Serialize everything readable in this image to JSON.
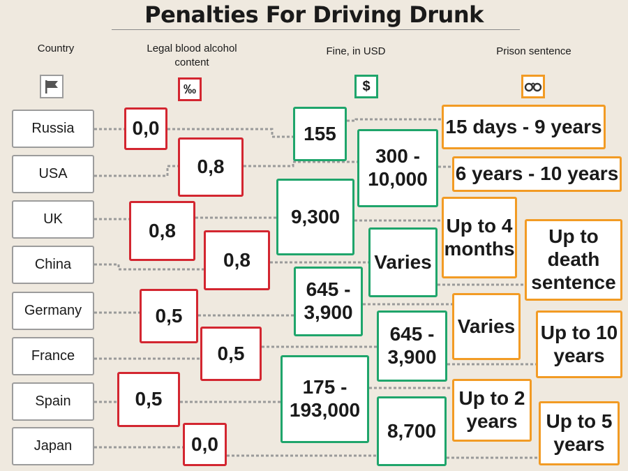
{
  "title": "Penalties For Driving Drunk",
  "headers": {
    "country": "Country",
    "bac": "Legal blood alcohol content",
    "fine": "Fine, in USD",
    "prison": "Prison sentence"
  },
  "icons": {
    "country": "flag-icon",
    "bac": "permille-icon",
    "bac_symbol": "‰",
    "fine": "dollar-icon",
    "fine_symbol": "$",
    "prison": "handcuffs-icon"
  },
  "colors": {
    "country_border": "#9c9c9c",
    "bac_border": "#d32630",
    "fine_border": "#1fa56b",
    "prison_border": "#f29b24",
    "background": "#efe9df"
  },
  "rows": [
    {
      "country": "Russia",
      "bac": "0,0",
      "fine": "155",
      "prison": "15 days - 9 years"
    },
    {
      "country": "USA",
      "bac": "0,8",
      "fine": "300 - 10,000",
      "prison": "6 years - 10 years"
    },
    {
      "country": "UK",
      "bac": "0,8",
      "fine": "9,300",
      "prison": "Up to 4 months"
    },
    {
      "country": "China",
      "bac": "0,8",
      "fine": "Varies",
      "prison": "Up to death sentence"
    },
    {
      "country": "Germany",
      "bac": "0,5",
      "fine": "645 - 3,900",
      "prison": "Varies"
    },
    {
      "country": "France",
      "bac": "0,5",
      "fine": "645 - 3,900",
      "prison": "Up to 10 years"
    },
    {
      "country": "Spain",
      "bac": "0,5",
      "fine": "175 - 193,000",
      "prison": "Up to 2 years"
    },
    {
      "country": "Japan",
      "bac": "0,0",
      "fine": "8,700",
      "prison": "Up to 5 years"
    }
  ]
}
